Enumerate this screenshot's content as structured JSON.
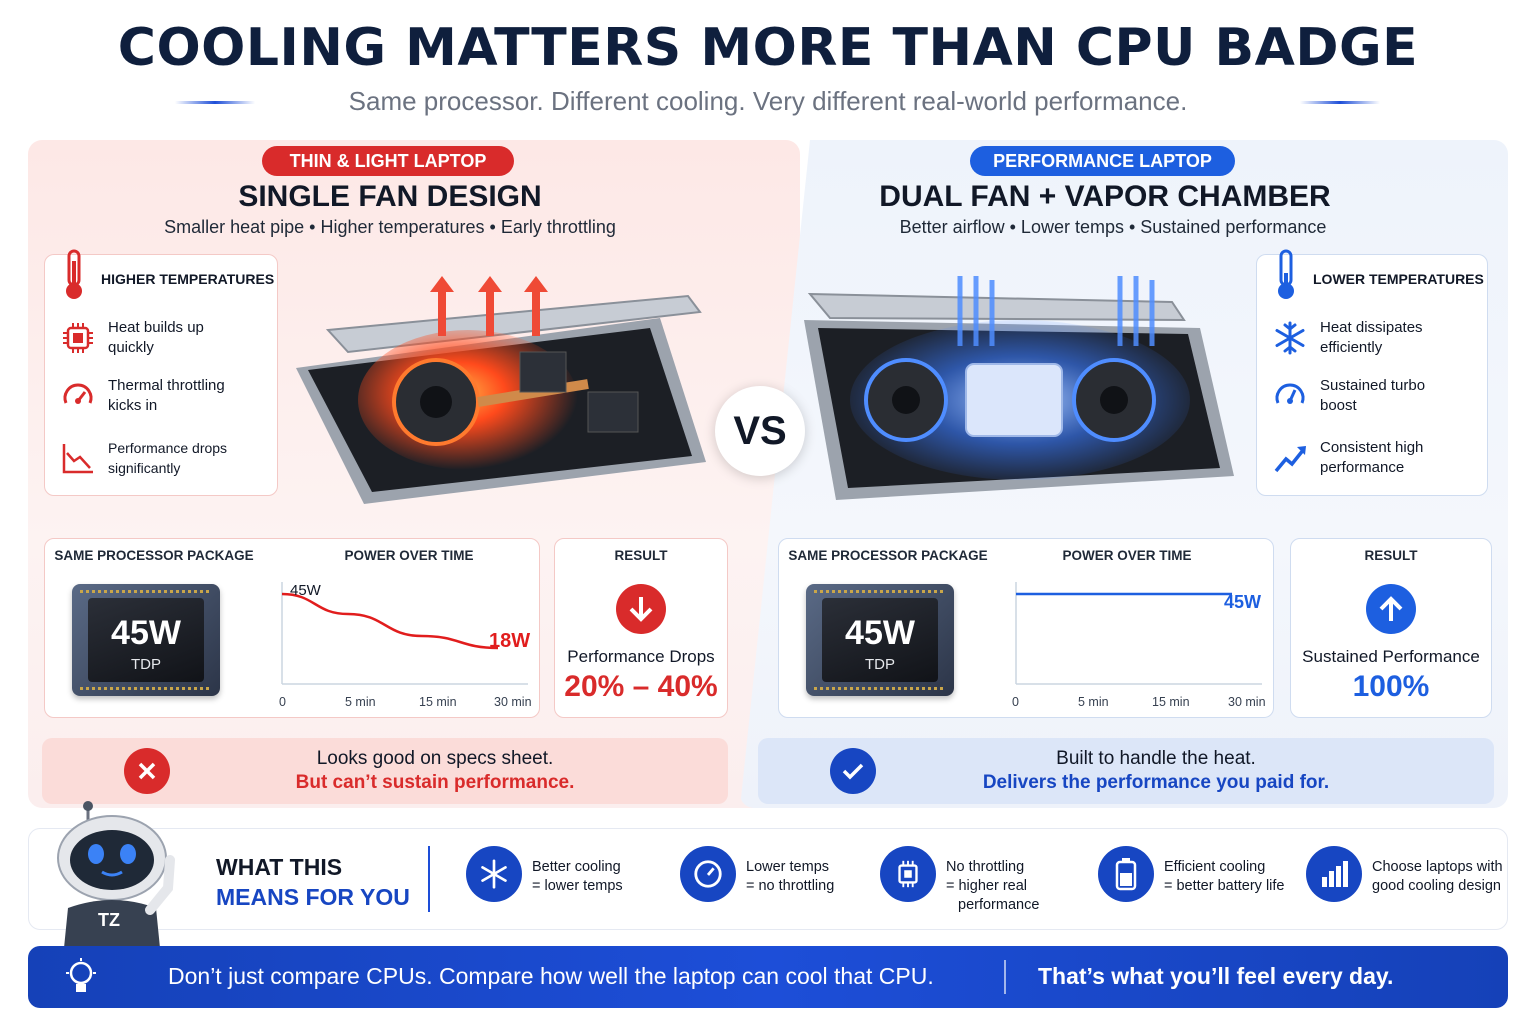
{
  "header": {
    "title": "COOLING MATTERS MORE THAN CPU BADGE",
    "subtitle": "Same processor. Different cooling. Very different real-world performance."
  },
  "left": {
    "badge": "THIN & LIGHT LAPTOP",
    "heading": "SINGLE FAN DESIGN",
    "tagline": "Smaller heat pipe • Higher temperatures • Early throttling",
    "features_title": "HIGHER TEMPERATURES",
    "features": [
      {
        "icon": "cpu-hot-icon",
        "text": "Heat builds up quickly"
      },
      {
        "icon": "gauge-icon",
        "text": "Thermal throttling kicks in"
      },
      {
        "icon": "chart-down-icon",
        "text": "Performance drops significantly"
      }
    ],
    "package_label": "SAME PROCESSOR PACKAGE",
    "chip_watts": "45W",
    "chip_tdp": "TDP",
    "power_label": "POWER OVER TIME",
    "start_label": "45W",
    "end_label": "18W",
    "result_label": "RESULT",
    "result_text": "Performance Drops",
    "result_value": "20% – 40%",
    "banner_line1": "Looks good on specs sheet.",
    "banner_line2": "But can’t sustain performance.",
    "color": "#d92b2b"
  },
  "right": {
    "badge": "PERFORMANCE LAPTOP",
    "heading": "DUAL FAN + VAPOR CHAMBER",
    "tagline": "Better airflow • Lower temps • Sustained performance",
    "features_title": "LOWER TEMPERATURES",
    "features": [
      {
        "icon": "snowflake-icon",
        "text": "Heat dissipates efficiently"
      },
      {
        "icon": "gauge-icon",
        "text": "Sustained turbo boost"
      },
      {
        "icon": "chart-up-icon",
        "text": "Consistent high performance"
      }
    ],
    "package_label": "SAME PROCESSOR PACKAGE",
    "chip_watts": "45W",
    "chip_tdp": "TDP",
    "power_label": "POWER OVER TIME",
    "end_label": "45W",
    "result_label": "RESULT",
    "result_text": "Sustained Performance",
    "result_value": "100%",
    "banner_line1": "Built to handle the heat.",
    "banner_line2": "Delivers the performance you paid for.",
    "color": "#1746c2"
  },
  "vs_label": "VS",
  "x_ticks": [
    "0",
    "5 min",
    "15 min",
    "30 min"
  ],
  "chart_data": [
    {
      "type": "line",
      "title": "POWER OVER TIME",
      "x": [
        "0",
        "5 min",
        "15 min",
        "30 min"
      ],
      "series": [
        {
          "values": [
            45,
            35,
            24,
            18
          ]
        }
      ],
      "ylim": [
        0,
        50
      ]
    },
    {
      "type": "line",
      "title": "POWER OVER TIME",
      "x": [
        "0",
        "5 min",
        "15 min",
        "30 min"
      ],
      "series": [
        {
          "values": [
            45,
            45,
            45,
            45
          ]
        }
      ],
      "ylim": [
        0,
        50
      ]
    }
  ],
  "means": {
    "title_line1": "WHAT THIS",
    "title_line2": "MEANS FOR YOU",
    "mascot_label": "TZ",
    "items": [
      {
        "icon": "snowflake-icon",
        "line1": "Better cooling",
        "line2": "= lower temps",
        "line3": ""
      },
      {
        "icon": "speedometer-icon",
        "line1": "Lower temps",
        "line2": "= no throttling",
        "line3": ""
      },
      {
        "icon": "chip-icon",
        "line1": "No throttling",
        "line2": "= higher real",
        "line3": "performance"
      },
      {
        "icon": "battery-icon",
        "line1": "Efficient cooling",
        "line2": "= better battery life",
        "line3": ""
      },
      {
        "icon": "bar-chart-icon",
        "line1": "Choose laptops with",
        "line2": "good cooling design",
        "line3": ""
      }
    ]
  },
  "footer": {
    "text": "Don’t just compare CPUs. Compare how well the laptop can cool that CPU.",
    "highlight": "That’s what you’ll feel every day."
  }
}
